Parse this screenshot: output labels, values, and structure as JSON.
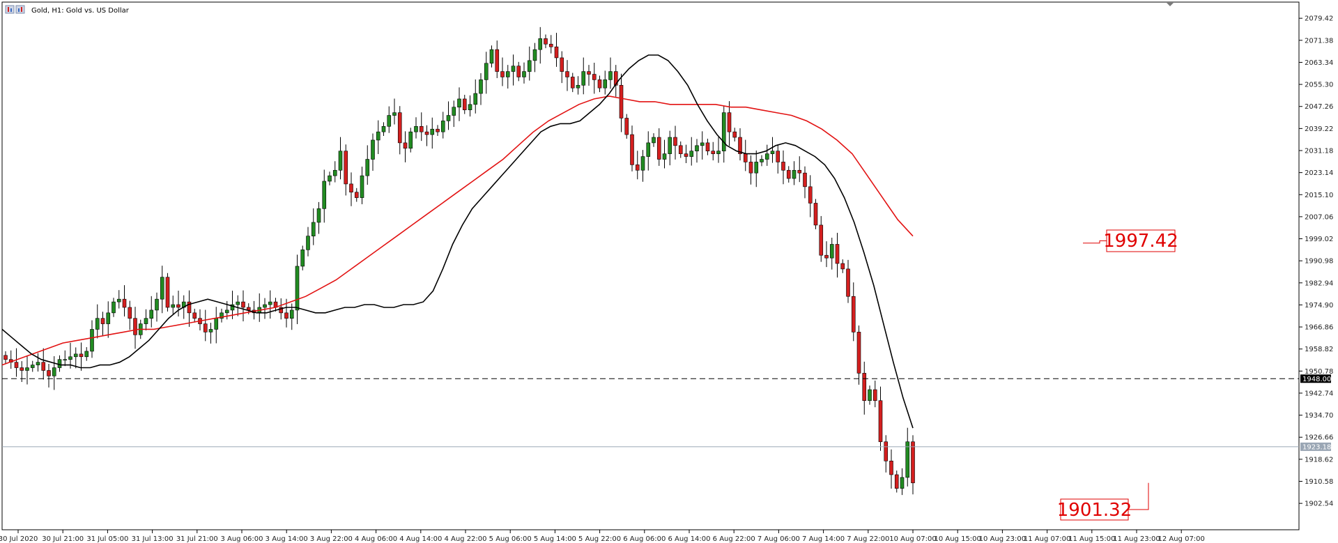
{
  "window": {
    "title": "Gold, H1:  Gold vs. US Dollar",
    "icon": "chart-window-icon"
  },
  "colors": {
    "bull": "#228b22",
    "bear": "#d31f1f",
    "ema_fast": "#000000",
    "ema_slow": "#e21212",
    "dashed_line": "#000000",
    "current_price_line": "#9aa6b4",
    "callout": "#e00000",
    "grid_axis": "#000000"
  },
  "chart_data": {
    "type": "candlestick",
    "title": "Gold, H1:  Gold vs. US Dollar",
    "symbol": "Gold",
    "timeframe": "H1",
    "ylim": [
      1898.0,
      2081.5
    ],
    "y_ticks": [
      "2079.42",
      "2071.38",
      "2063.34",
      "2055.30",
      "2047.26",
      "2039.22",
      "2031.18",
      "2023.14",
      "2015.10",
      "2007.06",
      "1999.02",
      "1990.98",
      "1982.94",
      "1974.90",
      "1966.86",
      "1958.82",
      "1950.78",
      "1942.74",
      "1934.70",
      "1926.66",
      "1918.62",
      "1910.58",
      "1902.54"
    ],
    "x_ticks": [
      "30 Jul 2020",
      "30 Jul 21:00",
      "31 Jul 05:00",
      "31 Jul 13:00",
      "31 Jul 21:00",
      "3 Aug 06:00",
      "3 Aug 14:00",
      "3 Aug 22:00",
      "4 Aug 06:00",
      "4 Aug 14:00",
      "4 Aug 22:00",
      "5 Aug 06:00",
      "5 Aug 14:00",
      "5 Aug 22:00",
      "6 Aug 06:00",
      "6 Aug 14:00",
      "6 Aug 22:00",
      "7 Aug 06:00",
      "7 Aug 14:00",
      "7 Aug 22:00",
      "10 Aug 07:00",
      "10 Aug 15:00",
      "10 Aug 23:00",
      "11 Aug 07:00",
      "11 Aug 15:00",
      "11 Aug 23:00",
      "12 Aug 07:00"
    ],
    "candle_closes": [
      1955,
      1954,
      1952,
      1951,
      1952,
      1953,
      1954,
      1951,
      1949,
      1952,
      1955,
      1955,
      1956,
      1957,
      1956,
      1958,
      1966,
      1970,
      1968,
      1972,
      1976,
      1977,
      1974,
      1970,
      1964,
      1968,
      1970,
      1973,
      1977,
      1985,
      1974,
      1975,
      1974,
      1976,
      1972,
      1970,
      1968,
      1965,
      1966,
      1970,
      1972,
      1973,
      1975,
      1976,
      1974,
      1973,
      1972,
      1974,
      1975,
      1976,
      1974,
      1972,
      1970,
      1973,
      1989,
      1995,
      2000,
      2005,
      2010,
      2020,
      2022,
      2024,
      2031,
      2019,
      2016,
      2014,
      2022,
      2028,
      2035,
      2038,
      2040,
      2044,
      2045,
      2034,
      2032,
      2038,
      2040,
      2038,
      2037,
      2039,
      2038,
      2042,
      2044,
      2047,
      2050,
      2046,
      2048,
      2052,
      2057,
      2063,
      2068,
      2060,
      2058,
      2060,
      2062,
      2058,
      2060,
      2064,
      2068,
      2072,
      2070,
      2069,
      2065,
      2060,
      2058,
      2054,
      2055,
      2060,
      2059,
      2057,
      2054,
      2057,
      2060,
      2055,
      2043,
      2037,
      2026,
      2024,
      2029,
      2034,
      2036,
      2028,
      2030,
      2036,
      2033,
      2030,
      2029,
      2031,
      2033,
      2034,
      2031,
      2030,
      2031,
      2045,
      2038,
      2036,
      2030,
      2027,
      2023,
      2027,
      2028,
      2030,
      2031,
      2027,
      2024,
      2021,
      2024,
      2023,
      2018,
      2012,
      2004,
      1993,
      1992,
      1997,
      1990,
      1988,
      1978,
      1965,
      1950,
      1940,
      1944,
      1940,
      1925,
      1918,
      1913,
      1908,
      1912,
      1925,
      1910
    ],
    "series": [
      {
        "name": "EMA fast",
        "color": "#000000",
        "values": [
          1966,
          1963,
          1960,
          1957,
          1955,
          1954,
          1953,
          1953,
          1952,
          1952,
          1953,
          1953,
          1954,
          1956,
          1959,
          1962,
          1966,
          1970,
          1973,
          1975,
          1976,
          1977,
          1976,
          1975,
          1974,
          1973,
          1972,
          1972,
          1973,
          1974,
          1974,
          1973,
          1972,
          1972,
          1973,
          1974,
          1974,
          1975,
          1975,
          1974,
          1974,
          1975,
          1975,
          1976,
          1980,
          1988,
          1997,
          2004,
          2010,
          2014,
          2018,
          2022,
          2026,
          2030,
          2034,
          2038,
          2040,
          2041,
          2041,
          2042,
          2045,
          2048,
          2052,
          2057,
          2061,
          2064,
          2066,
          2066,
          2064,
          2060,
          2055,
          2048,
          2042,
          2037,
          2033,
          2031,
          2030,
          2030,
          2031,
          2033,
          2034,
          2033,
          2031,
          2029,
          2026,
          2021,
          2014,
          2005,
          1994,
          1982,
          1968,
          1954,
          1941,
          1930
        ]
      },
      {
        "name": "EMA slow",
        "color": "#e21212",
        "values": [
          1953,
          1955,
          1957,
          1959,
          1961,
          1962,
          1963,
          1964,
          1965,
          1966,
          1966,
          1967,
          1968,
          1969,
          1970,
          1971,
          1972,
          1973,
          1974,
          1976,
          1978,
          1981,
          1984,
          1988,
          1992,
          1996,
          2000,
          2004,
          2008,
          2012,
          2016,
          2020,
          2024,
          2028,
          2033,
          2038,
          2042,
          2045,
          2048,
          2050,
          2051,
          2050,
          2049,
          2049,
          2048,
          2048,
          2048,
          2048,
          2047,
          2047,
          2046,
          2045,
          2044,
          2042,
          2039,
          2035,
          2030,
          2022,
          2014,
          2006,
          2000
        ]
      }
    ],
    "horizontal_line_dashed": 1948.0,
    "price_tag_dashed": "1948.00",
    "current_price": 1923.18,
    "price_tag_current": "1923.18",
    "annotations": [
      {
        "text": "1997.42",
        "value": 1997.42
      },
      {
        "text": "1901.32",
        "value": 1901.32
      }
    ]
  }
}
